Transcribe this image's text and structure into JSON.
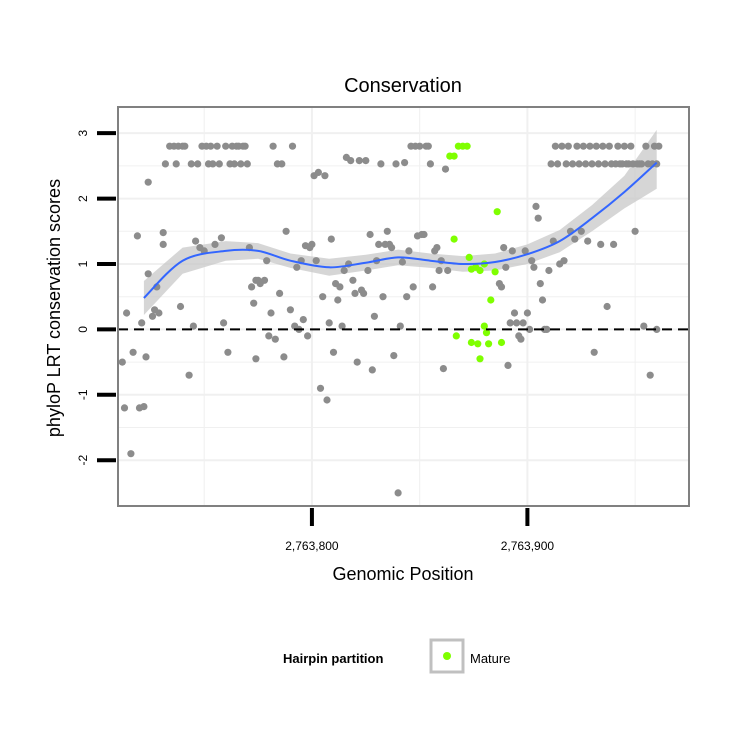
{
  "chart_data": {
    "type": "scatter",
    "title": "Conservation",
    "xlabel": "Genomic Position",
    "ylabel": "phyloP LRT conservation scores",
    "xlim": [
      2763710,
      2763975
    ],
    "ylim": [
      -2.7,
      3.4
    ],
    "x_ticks": [
      {
        "value": 2763800,
        "label": "2,763,800"
      },
      {
        "value": 2763900,
        "label": "2,763,900"
      }
    ],
    "y_ticks": [
      {
        "value": -2,
        "label": "-2"
      },
      {
        "value": -1,
        "label": "-1"
      },
      {
        "value": 0,
        "label": "0"
      },
      {
        "value": 1,
        "label": "1"
      },
      {
        "value": 2,
        "label": "2"
      },
      {
        "value": 3,
        "label": "3"
      }
    ],
    "grid": true,
    "reference_line": {
      "y": 0,
      "style": "dashed"
    },
    "colors": {
      "background": "#ffffff",
      "grid": "#f0f0f0",
      "frame": "#808080",
      "other_points": "#8c8c8c",
      "mature_points": "#7fff00",
      "smooth_line": "#3366ff",
      "confidence_band": "#c8c8c8"
    },
    "legend": {
      "title": "Hairpin partition",
      "placement": "bottom",
      "entries": [
        {
          "label": "Mature",
          "color": "#7fff00"
        }
      ]
    },
    "smooth": {
      "method": "loess",
      "x": [
        2763722,
        2763740,
        2763760,
        2763775,
        2763790,
        2763808,
        2763825,
        2763840,
        2763855,
        2763870,
        2763885,
        2763900,
        2763915,
        2763930,
        2763945,
        2763960
      ],
      "y": [
        0.48,
        1.05,
        1.2,
        1.2,
        1.05,
        0.95,
        1.02,
        1.1,
        1.05,
        1.0,
        1.03,
        1.15,
        1.35,
        1.7,
        2.1,
        2.55
      ],
      "lower": [
        0.22,
        0.85,
        1.05,
        1.08,
        0.94,
        0.82,
        0.9,
        0.98,
        0.94,
        0.88,
        0.9,
        1.0,
        1.18,
        1.5,
        1.85,
        2.15
      ],
      "upper": [
        0.74,
        1.25,
        1.35,
        1.32,
        1.16,
        1.08,
        1.14,
        1.22,
        1.16,
        1.12,
        1.16,
        1.3,
        1.52,
        1.9,
        2.35,
        3.05
      ]
    },
    "series": [
      {
        "name": "Mature",
        "points": [
          [
            2763864,
            2.65
          ],
          [
            2763866,
            2.65
          ],
          [
            2763868,
            2.8
          ],
          [
            2763870,
            2.8
          ],
          [
            2763872,
            2.8
          ],
          [
            2763886,
            1.8
          ],
          [
            2763866,
            1.38
          ],
          [
            2763873,
            1.1
          ],
          [
            2763874,
            0.92
          ],
          [
            2763876,
            0.95
          ],
          [
            2763878,
            0.9
          ],
          [
            2763880,
            1.0
          ],
          [
            2763885,
            0.88
          ],
          [
            2763883,
            0.45
          ],
          [
            2763881,
            -0.05
          ],
          [
            2763867,
            -0.1
          ],
          [
            2763880,
            0.05
          ],
          [
            2763874,
            -0.2
          ],
          [
            2763877,
            -0.22
          ],
          [
            2763882,
            -0.22
          ],
          [
            2763878,
            -0.45
          ],
          [
            2763888,
            -0.2
          ]
        ]
      },
      {
        "points": [
          [
            2763712,
            -0.5
          ],
          [
            2763713,
            -1.2
          ],
          [
            2763714,
            0.25
          ],
          [
            2763716,
            -1.9
          ],
          [
            2763717,
            -0.35
          ],
          [
            2763719,
            1.43
          ],
          [
            2763720,
            -1.2
          ],
          [
            2763721,
            0.1
          ],
          [
            2763722,
            -1.18
          ],
          [
            2763723,
            -0.42
          ],
          [
            2763724,
            2.25
          ],
          [
            2763724,
            0.85
          ],
          [
            2763726,
            0.2
          ],
          [
            2763727,
            0.3
          ],
          [
            2763728,
            0.65
          ],
          [
            2763729,
            0.25
          ],
          [
            2763731,
            1.3
          ],
          [
            2763731,
            1.48
          ],
          [
            2763732,
            2.53
          ],
          [
            2763734,
            2.8
          ],
          [
            2763736,
            2.8
          ],
          [
            2763737,
            2.53
          ],
          [
            2763738,
            2.8
          ],
          [
            2763739,
            0.35
          ],
          [
            2763740,
            2.8
          ],
          [
            2763741,
            2.8
          ],
          [
            2763743,
            -0.7
          ],
          [
            2763744,
            2.53
          ],
          [
            2763745,
            0.05
          ],
          [
            2763746,
            1.35
          ],
          [
            2763747,
            2.53
          ],
          [
            2763748,
            1.25
          ],
          [
            2763749,
            2.8
          ],
          [
            2763750,
            1.2
          ],
          [
            2763751,
            2.8
          ],
          [
            2763752,
            2.53
          ],
          [
            2763753,
            2.8
          ],
          [
            2763754,
            2.53
          ],
          [
            2763755,
            1.3
          ],
          [
            2763756,
            2.8
          ],
          [
            2763757,
            2.53
          ],
          [
            2763758,
            1.4
          ],
          [
            2763759,
            0.1
          ],
          [
            2763760,
            2.8
          ],
          [
            2763761,
            -0.35
          ],
          [
            2763762,
            2.53
          ],
          [
            2763763,
            2.8
          ],
          [
            2763764,
            2.53
          ],
          [
            2763765,
            2.8
          ],
          [
            2763766,
            2.8
          ],
          [
            2763767,
            2.53
          ],
          [
            2763768,
            2.8
          ],
          [
            2763769,
            2.8
          ],
          [
            2763770,
            2.53
          ],
          [
            2763771,
            1.25
          ],
          [
            2763772,
            0.65
          ],
          [
            2763773,
            0.4
          ],
          [
            2763774,
            0.75
          ],
          [
            2763774,
            -0.45
          ],
          [
            2763775,
            0.75
          ],
          [
            2763776,
            0.7
          ],
          [
            2763778,
            0.75
          ],
          [
            2763779,
            1.05
          ],
          [
            2763780,
            -0.1
          ],
          [
            2763781,
            0.25
          ],
          [
            2763782,
            2.8
          ],
          [
            2763783,
            -0.15
          ],
          [
            2763784,
            2.53
          ],
          [
            2763785,
            0.55
          ],
          [
            2763786,
            2.53
          ],
          [
            2763787,
            -0.42
          ],
          [
            2763788,
            1.5
          ],
          [
            2763790,
            0.3
          ],
          [
            2763791,
            2.8
          ],
          [
            2763792,
            0.05
          ],
          [
            2763793,
            0.95
          ],
          [
            2763794,
            0.0
          ],
          [
            2763795,
            1.05
          ],
          [
            2763796,
            0.15
          ],
          [
            2763797,
            1.28
          ],
          [
            2763798,
            -0.1
          ],
          [
            2763799,
            1.25
          ],
          [
            2763800,
            1.3
          ],
          [
            2763801,
            2.35
          ],
          [
            2763802,
            1.05
          ],
          [
            2763803,
            2.4
          ],
          [
            2763804,
            -0.9
          ],
          [
            2763805,
            0.5
          ],
          [
            2763806,
            2.35
          ],
          [
            2763807,
            -1.08
          ],
          [
            2763808,
            0.1
          ],
          [
            2763809,
            1.38
          ],
          [
            2763810,
            -0.35
          ],
          [
            2763811,
            0.7
          ],
          [
            2763812,
            0.45
          ],
          [
            2763813,
            0.65
          ],
          [
            2763814,
            0.05
          ],
          [
            2763815,
            0.9
          ],
          [
            2763816,
            2.63
          ],
          [
            2763817,
            1.0
          ],
          [
            2763818,
            2.58
          ],
          [
            2763819,
            0.75
          ],
          [
            2763820,
            0.55
          ],
          [
            2763821,
            -0.5
          ],
          [
            2763822,
            2.58
          ],
          [
            2763823,
            0.6
          ],
          [
            2763824,
            0.55
          ],
          [
            2763825,
            2.58
          ],
          [
            2763826,
            0.9
          ],
          [
            2763827,
            1.45
          ],
          [
            2763828,
            -0.62
          ],
          [
            2763829,
            0.2
          ],
          [
            2763830,
            1.05
          ],
          [
            2763831,
            1.3
          ],
          [
            2763832,
            2.53
          ],
          [
            2763833,
            0.5
          ],
          [
            2763834,
            1.3
          ],
          [
            2763835,
            1.5
          ],
          [
            2763836,
            1.3
          ],
          [
            2763837,
            1.25
          ],
          [
            2763838,
            -0.4
          ],
          [
            2763839,
            2.53
          ],
          [
            2763840,
            -2.5
          ],
          [
            2763841,
            0.05
          ],
          [
            2763842,
            1.03
          ],
          [
            2763843,
            2.55
          ],
          [
            2763844,
            0.5
          ],
          [
            2763845,
            1.2
          ],
          [
            2763846,
            2.8
          ],
          [
            2763847,
            0.65
          ],
          [
            2763848,
            2.8
          ],
          [
            2763849,
            1.43
          ],
          [
            2763850,
            2.8
          ],
          [
            2763851,
            1.45
          ],
          [
            2763852,
            1.45
          ],
          [
            2763853,
            2.8
          ],
          [
            2763854,
            2.8
          ],
          [
            2763855,
            2.53
          ],
          [
            2763856,
            0.65
          ],
          [
            2763857,
            1.2
          ],
          [
            2763858,
            1.25
          ],
          [
            2763859,
            0.9
          ],
          [
            2763860,
            1.05
          ],
          [
            2763861,
            -0.6
          ],
          [
            2763862,
            2.45
          ],
          [
            2763863,
            0.9
          ],
          [
            2763887,
            0.7
          ],
          [
            2763888,
            0.65
          ],
          [
            2763889,
            1.25
          ],
          [
            2763890,
            0.95
          ],
          [
            2763891,
            -0.55
          ],
          [
            2763892,
            0.1
          ],
          [
            2763893,
            1.2
          ],
          [
            2763894,
            0.25
          ],
          [
            2763895,
            0.1
          ],
          [
            2763896,
            -0.1
          ],
          [
            2763897,
            -0.15
          ],
          [
            2763898,
            0.1
          ],
          [
            2763899,
            1.2
          ],
          [
            2763900,
            0.25
          ],
          [
            2763901,
            0.0
          ],
          [
            2763902,
            1.05
          ],
          [
            2763903,
            0.95
          ],
          [
            2763904,
            1.88
          ],
          [
            2763905,
            1.7
          ],
          [
            2763906,
            0.7
          ],
          [
            2763907,
            0.45
          ],
          [
            2763908,
            0.0
          ],
          [
            2763909,
            0.0
          ],
          [
            2763910,
            0.9
          ],
          [
            2763911,
            2.53
          ],
          [
            2763912,
            1.35
          ],
          [
            2763913,
            2.8
          ],
          [
            2763914,
            2.53
          ],
          [
            2763915,
            1.0
          ],
          [
            2763916,
            2.8
          ],
          [
            2763917,
            1.05
          ],
          [
            2763918,
            2.53
          ],
          [
            2763919,
            2.8
          ],
          [
            2763920,
            1.5
          ],
          [
            2763921,
            2.53
          ],
          [
            2763922,
            1.38
          ],
          [
            2763923,
            2.8
          ],
          [
            2763924,
            2.53
          ],
          [
            2763925,
            1.5
          ],
          [
            2763926,
            2.8
          ],
          [
            2763927,
            2.53
          ],
          [
            2763928,
            1.35
          ],
          [
            2763929,
            2.8
          ],
          [
            2763930,
            2.53
          ],
          [
            2763931,
            -0.35
          ],
          [
            2763932,
            2.8
          ],
          [
            2763933,
            2.53
          ],
          [
            2763934,
            1.3
          ],
          [
            2763935,
            2.8
          ],
          [
            2763936,
            2.53
          ],
          [
            2763937,
            0.35
          ],
          [
            2763938,
            2.8
          ],
          [
            2763939,
            2.53
          ],
          [
            2763940,
            1.3
          ],
          [
            2763941,
            2.53
          ],
          [
            2763942,
            2.8
          ],
          [
            2763943,
            2.53
          ],
          [
            2763944,
            2.53
          ],
          [
            2763945,
            2.8
          ],
          [
            2763946,
            2.53
          ],
          [
            2763947,
            2.53
          ],
          [
            2763948,
            2.8
          ],
          [
            2763949,
            2.53
          ],
          [
            2763950,
            1.5
          ],
          [
            2763951,
            2.53
          ],
          [
            2763952,
            2.53
          ],
          [
            2763953,
            2.53
          ],
          [
            2763954,
            0.05
          ],
          [
            2763955,
            2.8
          ],
          [
            2763956,
            2.53
          ],
          [
            2763957,
            -0.7
          ],
          [
            2763958,
            2.53
          ],
          [
            2763959,
            2.8
          ],
          [
            2763960,
            0.0
          ],
          [
            2763960,
            2.53
          ],
          [
            2763961,
            2.8
          ]
        ]
      }
    ]
  }
}
